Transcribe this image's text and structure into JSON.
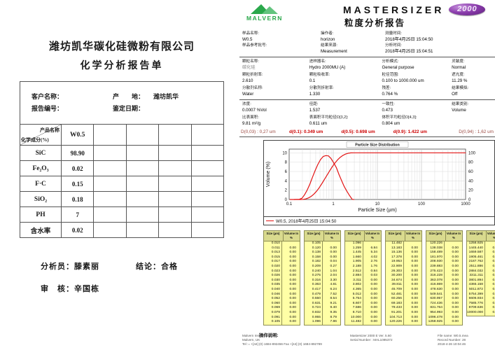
{
  "left_doc": {
    "company": "潍坊凯华碳化硅微粉有限公司",
    "title": "化学分析报告单",
    "info": {
      "customer_label": "客户名称：",
      "origin_label": "产　　地：",
      "origin_value": "潍坊凯华",
      "report_no_label": "报告编号：",
      "date_label": "鉴定日期："
    },
    "table": {
      "corner_top": "产品名称",
      "corner_bottom": "化学成分(%)",
      "product_columns": [
        "W0.5",
        "",
        "",
        "",
        ""
      ],
      "rows": [
        {
          "label": "SiC",
          "values": [
            "98.90",
            "",
            "",
            "",
            ""
          ]
        },
        {
          "label": "Fe₂O₃",
          "values": [
            "0.02",
            "",
            "",
            "",
            ""
          ]
        },
        {
          "label": "F·C",
          "values": [
            "0.15",
            "",
            "",
            "",
            ""
          ]
        },
        {
          "label": "SiO₂",
          "values": [
            "0.18",
            "",
            "",
            "",
            ""
          ]
        },
        {
          "label": "PH",
          "values": [
            "7",
            "",
            "",
            "",
            ""
          ]
        },
        {
          "label": "含水率",
          "values": [
            "0.02",
            "",
            "",
            "",
            ""
          ]
        }
      ]
    },
    "signatures": {
      "analyst": "分析员：滕素丽",
      "conclusion": "结论：合格",
      "reviewer": "审　核：辛国栋"
    }
  },
  "right_doc": {
    "brand": {
      "malvern": "MALVERN",
      "product": "MASTERSIZER",
      "model": "2000"
    },
    "title": "粒度分析报告",
    "info": [
      {
        "items": [
          {
            "label": "样品名称:",
            "value": "W0.5"
          },
          {
            "label": "样品参考批号:",
            "value": " "
          }
        ]
      },
      {
        "items": [
          {
            "label": "操作者:",
            "value": "horizon"
          },
          {
            "label": "结果来源:",
            "value": "Measurement"
          }
        ]
      },
      {
        "items": [
          {
            "label": "测量时间:",
            "value": "2018年4月25日 15:04:50"
          },
          {
            "label": "分析时间:",
            "value": "2018年4月25日 15:04:51"
          }
        ]
      }
    ],
    "params": [
      [
        {
          "label": "颗粒名称:",
          "value": "碳化硅",
          "muted": true
        },
        {
          "label": "进样器名:",
          "value": "Hydro 2000MU (A)"
        },
        {
          "label": "分析模式:",
          "value": "General purpose"
        },
        {
          "label": "灵敏度:",
          "value": "Normal"
        }
      ],
      [
        {
          "label": "颗粒折射率:",
          "value": "2.610"
        },
        {
          "label": "颗粒吸收率:",
          "value": "0.1"
        },
        {
          "label": "粒径范围:",
          "value": "0.100   to   1000.000   um"
        },
        {
          "label": "遮光度:",
          "value": "11.29    %"
        }
      ],
      [
        {
          "label": "分散剂名称:",
          "value": "Water"
        },
        {
          "label": "分散剂折射率:",
          "value": "1.330"
        },
        {
          "label": "残差:",
          "value": "0.764    %"
        },
        {
          "label": "结果模拟:",
          "value": "Off"
        }
      ]
    ],
    "stats": [
      [
        {
          "label": "浓度:",
          "value": "0.0007   %Vol"
        },
        {
          "label": "径距:",
          "value": "1.537"
        },
        {
          "label": "一致性:",
          "value": "0.473"
        },
        {
          "label": "结果类别:",
          "value": "Volume"
        }
      ],
      [
        {
          "label": "比表面积:",
          "value": "9.81   m²/g"
        },
        {
          "label": "表面积平均粒径D[3,2]:",
          "value": "0.611   um"
        },
        {
          "label": "体积平均粒径D[4,3]:",
          "value": "0.804   um"
        },
        {
          "label": "",
          "value": ""
        }
      ]
    ],
    "dline": {
      "left": "D(0,03) : 0,27 um",
      "items": [
        {
          "label": "d(0.1):",
          "value": "0.349",
          "unit": "um"
        },
        {
          "label": "d(0.5):",
          "value": "0.698",
          "unit": "um"
        },
        {
          "label": "d(0.9):",
          "value": "1.422",
          "unit": "um"
        }
      ],
      "right": "D(0,94) : 1,62 um"
    },
    "table": {
      "headers": [
        "Size (µm)",
        "Volume In %"
      ],
      "columns": [
        {
          "sizes": [
            "0.010",
            "0.011",
            "0.013",
            "0.015",
            "0.017",
            "0.020",
            "0.023",
            "0.026",
            "0.030",
            "0.035",
            "0.040",
            "0.046",
            "0.052",
            "0.060",
            "0.069",
            "0.079",
            "0.091",
            "0.105"
          ],
          "volumes": [
            "0.00",
            "0.00",
            "0.00",
            "0.00",
            "0.00",
            "0.00",
            "0.00",
            "0.00",
            "0.00",
            "0.00",
            "0.00",
            "0.00",
            "0.00",
            "0.00",
            "0.00",
            "0.00",
            "0.00"
          ]
        },
        {
          "sizes": [
            "0.105",
            "0.120",
            "0.138",
            "0.158",
            "0.182",
            "0.209",
            "0.240",
            "0.275",
            "0.316",
            "0.363",
            "0.417",
            "0.479",
            "0.550",
            "0.631",
            "0.724",
            "0.832",
            "0.955",
            "1.096"
          ],
          "volumes": [
            "0.00",
            "0.00",
            "0.00",
            "0.04",
            "0.27",
            "1.04",
            "2.04",
            "3.30",
            "4.81",
            "6.24",
            "7.52",
            "8.54",
            "9.21",
            "9.40",
            "9.35",
            "8.79",
            "7.86"
          ]
        },
        {
          "sizes": [
            "1.096",
            "1.259",
            "1.445",
            "1.660",
            "1.905",
            "2.188",
            "2.512",
            "2.884",
            "3.311",
            "3.802",
            "4.365",
            "5.012",
            "5.754",
            "6.607",
            "7.586",
            "8.710",
            "10.000",
            "11.482"
          ],
          "volumes": [
            "6.84",
            "5.34",
            "4.02",
            "2.76",
            "1.76",
            "0.84",
            "0.03",
            "0.00",
            "0.00",
            "0.00",
            "0.00",
            "0.00",
            "0.00",
            "0.00",
            "0.00",
            "0.00",
            "0.00"
          ]
        },
        {
          "sizes": [
            "11.482",
            "13.183",
            "15.136",
            "17.378",
            "19.953",
            "22.909",
            "26.303",
            "30.200",
            "34.674",
            "39.811",
            "45.709",
            "52.481",
            "60.256",
            "69.183",
            "79.433",
            "91.201",
            "104.713",
            "120.226"
          ],
          "volumes": [
            "0.00",
            "0.00",
            "0.00",
            "0.00",
            "0.00",
            "0.00",
            "0.00",
            "0.00",
            "0.00",
            "0.00",
            "0.00",
            "0.00",
            "0.00",
            "0.00",
            "0.00",
            "0.00",
            "0.00"
          ]
        },
        {
          "sizes": [
            "120.226",
            "138.038",
            "158.489",
            "181.970",
            "208.930",
            "239.883",
            "275.423",
            "316.228",
            "363.078",
            "416.869",
            "478.630",
            "549.541",
            "630.957",
            "724.436",
            "831.764",
            "954.993",
            "1096.478",
            "1258.925"
          ],
          "volumes": [
            "0.00",
            "0.00",
            "0.00",
            "0.00",
            "0.00",
            "0.00",
            "0.00",
            "0.00",
            "0.00",
            "0.00",
            "0.00",
            "0.00",
            "0.00",
            "0.00",
            "0.00",
            "0.00",
            "0.00"
          ]
        },
        {
          "sizes": [
            "1258.925",
            "1445.440",
            "1659.587",
            "1905.461",
            "2187.762",
            "2511.886",
            "2884.032",
            "3311.311",
            "3801.894",
            "4365.158",
            "5011.872",
            "5754.399",
            "6606.934",
            "7585.776",
            "8709.636",
            "10000.000"
          ],
          "volumes": [
            "0.00",
            "0.00",
            "0.00",
            "0.00",
            "0.00",
            "0.00",
            "0.00",
            "0.00",
            "0.00",
            "0.00",
            "0.00",
            "0.00",
            "0.00",
            "0.00",
            "0.00"
          ]
        }
      ]
    },
    "operation_label": "操作说明:",
    "footer": {
      "left": [
        "Malvern Instruments Ltd.",
        "Malvern, UK",
        "Tel := +[44] (0) 1684-892456 Fax +[44] (0) 1684-892789"
      ],
      "center": [
        "Mastersizer 2000 E Ver. 5.60",
        "Serial Number : MAL1095372"
      ],
      "right": [
        "File name: W0.5.mea",
        "Record Number: 28",
        "2018-4-26 10:04:46"
      ]
    }
  },
  "chart_data": {
    "type": "line",
    "title": "Particle Size Distribution",
    "xlabel": "Particle Size (µm)",
    "ylabel": "Volume (%)",
    "legend": "W0.5, 2018年4月25日 15:04:50",
    "xlim": [
      0.1,
      1000
    ],
    "x_ticks": [
      0.1,
      1,
      10,
      100,
      1000
    ],
    "ylim_left": [
      0,
      10.8
    ],
    "yticks_left": [
      0,
      2,
      4,
      6,
      8,
      10
    ],
    "ylim_right": [
      0,
      108
    ],
    "yticks_right": [
      0,
      20,
      40,
      60,
      80,
      100
    ],
    "grid": true,
    "legend_position": "bottom",
    "series": [
      {
        "name": "frequency",
        "axis": "left",
        "color": "#e31414",
        "x": [
          0.13,
          0.17,
          0.195,
          0.224,
          0.257,
          0.295,
          0.339,
          0.389,
          0.447,
          0.513,
          0.589,
          0.676,
          0.776,
          0.891,
          1.023,
          1.175,
          1.349,
          1.549,
          1.778,
          2.042,
          2.344,
          2.691,
          2.95
        ],
        "y": [
          0,
          0.04,
          0.27,
          1.04,
          2.04,
          3.3,
          4.81,
          6.24,
          7.52,
          8.54,
          9.21,
          9.4,
          9.35,
          8.79,
          7.86,
          6.84,
          5.34,
          4.02,
          2.76,
          1.76,
          0.84,
          0.03,
          0
        ]
      },
      {
        "name": "cumulative",
        "axis": "right",
        "color": "#e31414",
        "x": [
          0.105,
          0.158,
          0.182,
          0.209,
          0.24,
          0.275,
          0.316,
          0.363,
          0.417,
          0.479,
          0.55,
          0.631,
          0.724,
          0.832,
          0.955,
          1.096,
          1.259,
          1.445,
          1.66,
          1.905,
          2.188,
          2.512,
          2.884,
          10,
          100,
          1000
        ],
        "y": [
          0,
          0,
          0.04,
          0.31,
          1.35,
          3.39,
          6.69,
          11.5,
          17.74,
          25.26,
          33.8,
          43.01,
          52.41,
          61.76,
          70.55,
          78.41,
          85.25,
          90.59,
          94.61,
          97.37,
          99.13,
          99.97,
          100,
          100,
          100,
          100
        ]
      }
    ]
  }
}
